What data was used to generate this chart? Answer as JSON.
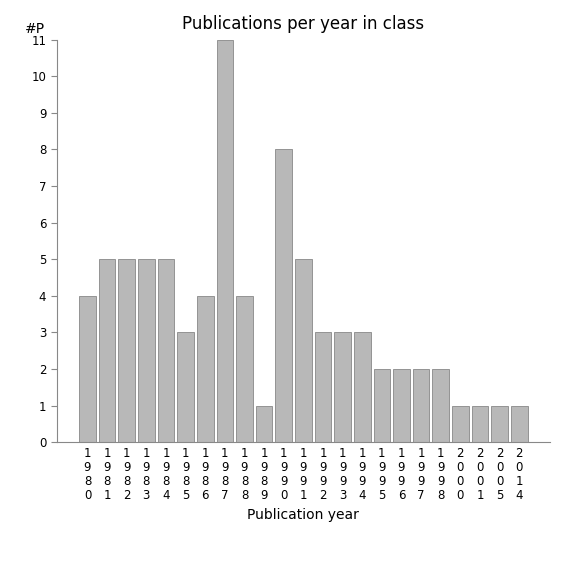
{
  "title": "Publications per year in class",
  "xlabel": "Publication year",
  "ylabel": "#P",
  "categories": [
    "1980",
    "1981",
    "1982",
    "1983",
    "1984",
    "1985",
    "1986",
    "1987",
    "1988",
    "1989",
    "1990",
    "1991",
    "1992",
    "1993",
    "1994",
    "1995",
    "1996",
    "1997",
    "1998",
    "2000",
    "2001",
    "2005",
    "2014"
  ],
  "values": [
    4,
    5,
    5,
    5,
    5,
    3,
    4,
    11,
    4,
    1,
    8,
    5,
    3,
    3,
    3,
    2,
    2,
    2,
    2,
    1,
    1,
    1,
    1
  ],
  "bar_color": "#b8b8b8",
  "bar_edgecolor": "#888888",
  "ylim": [
    0,
    11
  ],
  "yticks": [
    0,
    1,
    2,
    3,
    4,
    5,
    6,
    7,
    8,
    9,
    10,
    11
  ],
  "background_color": "#ffffff",
  "title_fontsize": 12,
  "axis_label_fontsize": 10,
  "tick_fontsize": 8.5
}
